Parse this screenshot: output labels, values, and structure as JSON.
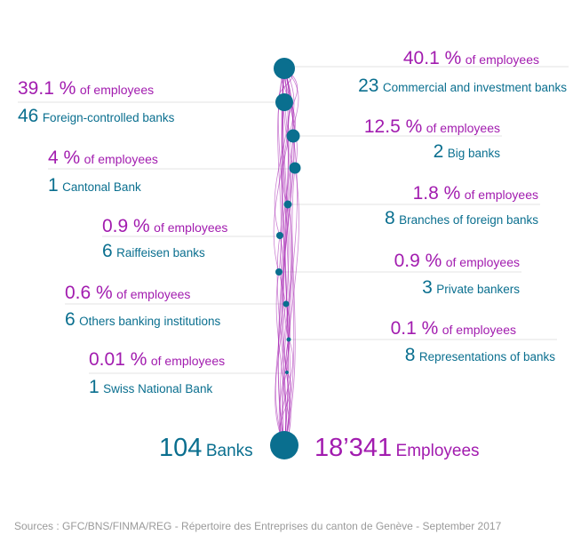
{
  "colors": {
    "employees": "#a21caf",
    "banks": "#0a6f8f",
    "divider": "#e3e3e3",
    "footer": "#9a9a9a"
  },
  "employees_suffix": "of employees",
  "categories": [
    {
      "pct": "40.1 %",
      "count": "23",
      "name": "Commercial and investment banks",
      "side": "right"
    },
    {
      "pct": "39.1 %",
      "count": "46",
      "name": "Foreign-controlled banks",
      "side": "left"
    },
    {
      "pct": "12.5 %",
      "count": "2",
      "name": "Big banks",
      "side": "right"
    },
    {
      "pct": "4 %",
      "count": "1",
      "name": "Cantonal Bank",
      "side": "left"
    },
    {
      "pct": "1.8 %",
      "count": "8",
      "name": "Branches of foreign banks",
      "side": "right"
    },
    {
      "pct": "0.9 %",
      "count": "6",
      "name": "Raiffeisen banks",
      "side": "left"
    },
    {
      "pct": "0.9 %",
      "count": "3",
      "name": "Private bankers",
      "side": "right"
    },
    {
      "pct": "0.6 %",
      "count": "6",
      "name": "Others banking institutions",
      "side": "left"
    },
    {
      "pct": "0.1 %",
      "count": "8",
      "name": "Representations of banks",
      "side": "right"
    },
    {
      "pct": "0.01 %",
      "count": "1",
      "name": "Swiss National Bank",
      "side": "left"
    }
  ],
  "totals": {
    "banks_count": "104",
    "banks_label": "Banks",
    "employees_count": "18’341",
    "employees_label": "Employees"
  },
  "footer": "Sources : GFC/BNS/FINMA/REG - Répertoire des  Entreprises du canton de Genève - September 2017"
}
